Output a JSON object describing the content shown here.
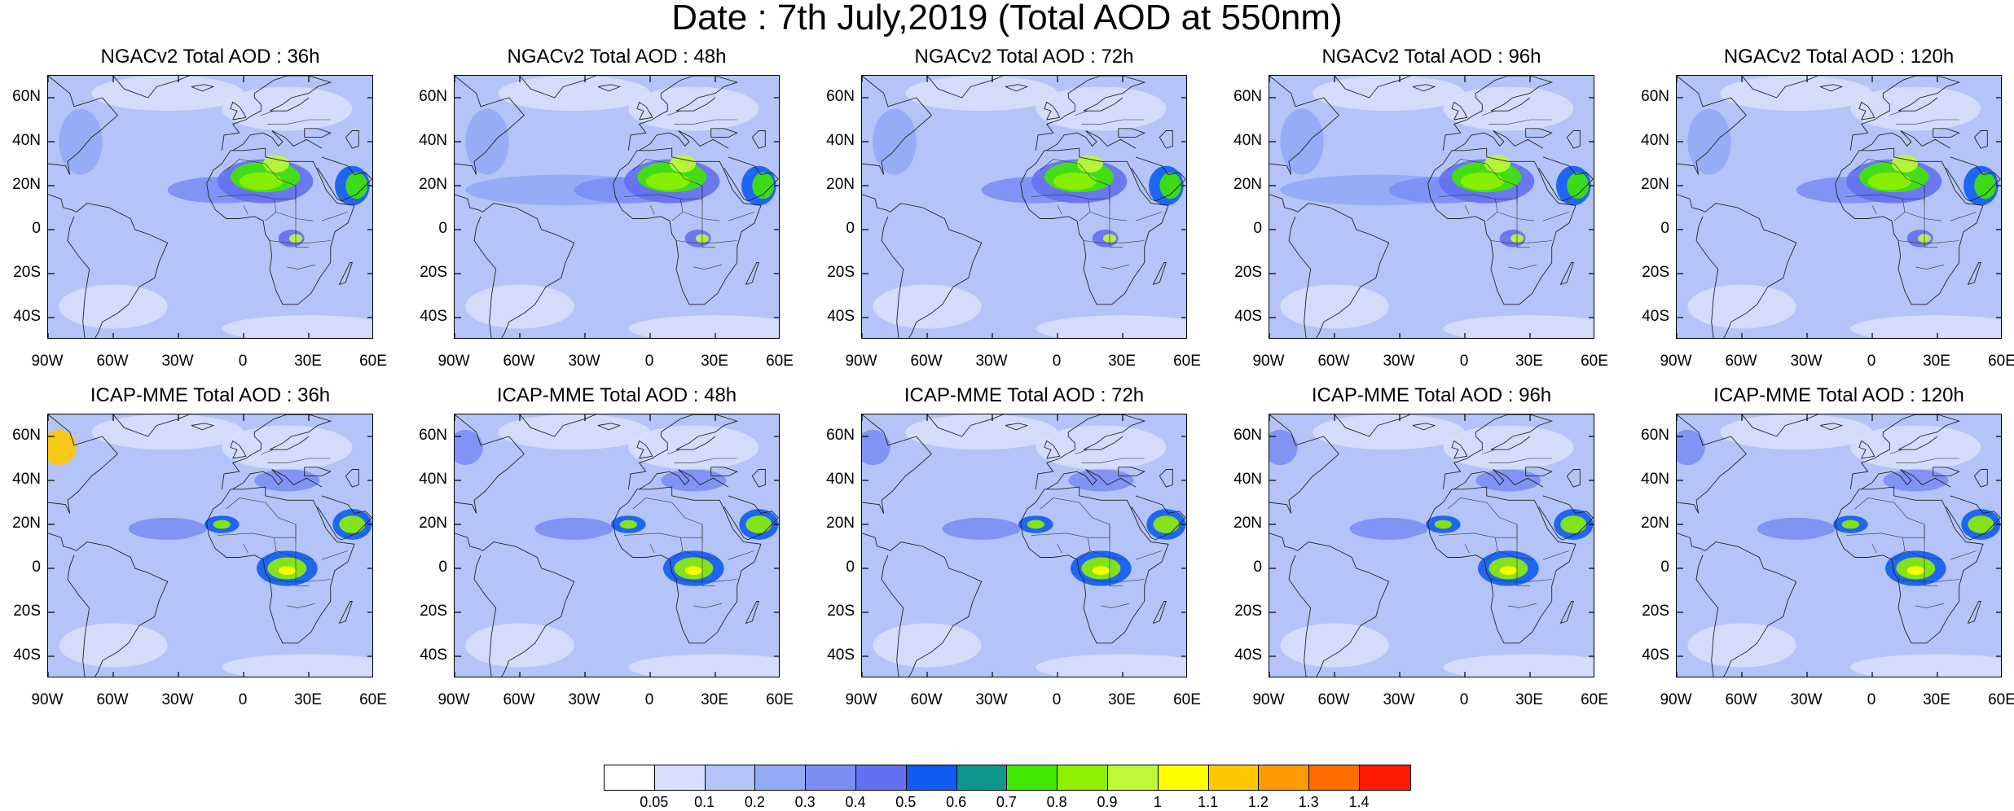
{
  "title": "Date : 7th July,2019 (Total AOD at 550nm)",
  "panels": [
    {
      "title": "NGACv2 Total AOD : 36h",
      "model": "NGACv2",
      "lead": "36h"
    },
    {
      "title": "NGACv2 Total AOD : 48h",
      "model": "NGACv2",
      "lead": "48h"
    },
    {
      "title": "NGACv2 Total AOD : 72h",
      "model": "NGACv2",
      "lead": "72h"
    },
    {
      "title": "NGACv2 Total AOD : 96h",
      "model": "NGACv2",
      "lead": "96h"
    },
    {
      "title": "NGACv2 Total AOD : 120h",
      "model": "NGACv2",
      "lead": "120h"
    },
    {
      "title": "ICAP-MME Total AOD : 36h",
      "model": "ICAP-MME",
      "lead": "36h"
    },
    {
      "title": "ICAP-MME Total AOD : 48h",
      "model": "ICAP-MME",
      "lead": "48h"
    },
    {
      "title": "ICAP-MME Total AOD : 72h",
      "model": "ICAP-MME",
      "lead": "72h"
    },
    {
      "title": "ICAP-MME Total AOD : 96h",
      "model": "ICAP-MME",
      "lead": "96h"
    },
    {
      "title": "ICAP-MME Total AOD : 120h",
      "model": "ICAP-MME",
      "lead": "120h"
    }
  ],
  "axes": {
    "lat_labels": [
      "60N",
      "40N",
      "20N",
      "0",
      "20S",
      "40S"
    ],
    "lon_labels": [
      "90W",
      "60W",
      "30W",
      "0",
      "30E",
      "60E"
    ],
    "lat_range": [
      -50,
      70
    ],
    "lon_range": [
      -90,
      60
    ]
  },
  "colorbar": {
    "labels": [
      "0.05",
      "0.1",
      "0.2",
      "0.3",
      "0.4",
      "0.5",
      "0.6",
      "0.7",
      "0.8",
      "0.9",
      "1",
      "1.1",
      "1.2",
      "1.3",
      "1.4"
    ],
    "colors": [
      "#ffffff",
      "#d6dffb",
      "#b4c4f8",
      "#93aaf6",
      "#7b8ef3",
      "#6470ef",
      "#0e5cf2",
      "#0f968f",
      "#3fe800",
      "#8fef00",
      "#bff83a",
      "#ffff00",
      "#ffc800",
      "#ff9b00",
      "#ff6c00",
      "#ff1a00"
    ]
  }
}
